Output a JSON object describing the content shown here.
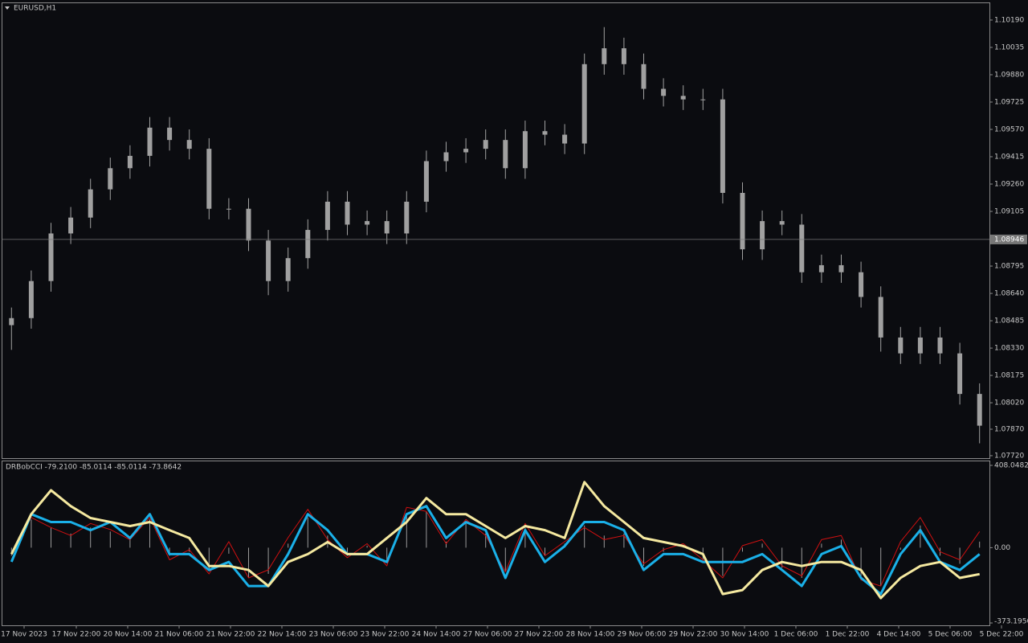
{
  "chart_data": [
    {
      "type": "candlestick",
      "title": "EURUSD,H1",
      "color": "#a0a0a0",
      "open": [
        1.0846,
        1.085,
        1.0871,
        1.0898,
        1.0907,
        1.0923,
        1.0935,
        1.0942,
        1.0958,
        1.0951,
        1.0946,
        1.0912,
        1.0912,
        1.0894,
        1.0871,
        1.0884,
        1.09,
        1.0916,
        1.0903,
        1.0905,
        1.0898,
        1.0916,
        1.0939,
        1.0944,
        1.0946,
        1.0951,
        1.0935,
        1.0956,
        1.0954,
        1.0949,
        1.0994,
        1.1003,
        1.0994,
        1.098,
        1.0976,
        1.0974,
        1.0974,
        1.0921,
        1.0889,
        1.0905,
        1.0903,
        1.0876,
        1.088,
        1.0876,
        1.0862,
        1.0839,
        1.083,
        1.0839,
        1.083,
        1.0807
      ],
      "high": [
        1.0856,
        1.0877,
        1.0904,
        1.0913,
        1.0929,
        1.0941,
        1.0948,
        1.0964,
        1.0964,
        1.0957,
        1.0952,
        1.0918,
        1.0918,
        1.09,
        1.089,
        1.0906,
        1.0922,
        1.0922,
        1.0911,
        1.0911,
        1.0922,
        1.0945,
        1.095,
        1.0952,
        1.0957,
        1.0957,
        1.0962,
        1.0962,
        1.096,
        1.1,
        1.1015,
        1.1009,
        1.1,
        1.0986,
        1.0982,
        1.098,
        1.098,
        1.0927,
        1.0911,
        1.0911,
        1.0909,
        1.0886,
        1.0886,
        1.0882,
        1.0868,
        1.0845,
        1.0845,
        1.0845,
        1.0836,
        1.0813
      ],
      "low": [
        1.0832,
        1.0844,
        1.0865,
        1.0892,
        1.0901,
        1.0917,
        1.0929,
        1.0936,
        1.0945,
        1.094,
        1.0906,
        1.0906,
        1.0888,
        1.0863,
        1.0865,
        1.0878,
        1.0894,
        1.0897,
        1.0897,
        1.0892,
        1.0892,
        1.091,
        1.0933,
        1.0938,
        1.094,
        1.0929,
        1.0929,
        1.0948,
        1.0943,
        1.0943,
        1.0988,
        1.0988,
        1.0974,
        1.097,
        1.0968,
        1.0968,
        1.0915,
        1.0883,
        1.0883,
        1.0897,
        1.087,
        1.087,
        1.087,
        1.0856,
        1.0831,
        1.0824,
        1.0824,
        1.0824,
        1.0801,
        1.0779
      ],
      "close": [
        1.085,
        1.0871,
        1.0898,
        1.0907,
        1.0923,
        1.0935,
        1.0942,
        1.0958,
        1.0951,
        1.0946,
        1.0912,
        1.0912,
        1.0894,
        1.0871,
        1.0884,
        1.09,
        1.0916,
        1.0903,
        1.0905,
        1.0898,
        1.0916,
        1.0939,
        1.0944,
        1.0946,
        1.0951,
        1.0935,
        1.0956,
        1.0954,
        1.0949,
        1.0994,
        1.1003,
        1.0994,
        1.098,
        1.0976,
        1.0974,
        1.0974,
        1.0921,
        1.0889,
        1.0905,
        1.0903,
        1.0876,
        1.088,
        1.0876,
        1.0862,
        1.0839,
        1.083,
        1.0839,
        1.083,
        1.0807,
        1.0789
      ],
      "current": 1.08946,
      "ylim": [
        1.07706,
        1.1029
      ],
      "yticks": [
        {
          "value": 1.1019,
          "label": "1.10190"
        },
        {
          "value": 1.10035,
          "label": "1.10035"
        },
        {
          "value": 1.0988,
          "label": "1.09880"
        },
        {
          "value": 1.09725,
          "label": "1.09725"
        },
        {
          "value": 1.0957,
          "label": "1.09570"
        },
        {
          "value": 1.09415,
          "label": "1.09415"
        },
        {
          "value": 1.0926,
          "label": "1.09260"
        },
        {
          "value": 1.09105,
          "label": "1.09105"
        },
        {
          "value": 1.08795,
          "label": "1.08795"
        },
        {
          "value": 1.0864,
          "label": "1.08640"
        },
        {
          "value": 1.08485,
          "label": "1.08485"
        },
        {
          "value": 1.0833,
          "label": "1.08330"
        },
        {
          "value": 1.08175,
          "label": "1.08175"
        },
        {
          "value": 1.0802,
          "label": "1.08020"
        },
        {
          "value": 1.0787,
          "label": "1.07870"
        },
        {
          "value": 1.0772,
          "label": "1.07720"
        }
      ]
    },
    {
      "type": "indicator",
      "title": "DRBobCCI -79.2100 -85.0114 -85.0114 -73.8642",
      "ylim": [
        -385,
        432
      ],
      "yticks": [
        408.0482,
        {
          "value": 0,
          "label": "0.00"
        },
        -373.1956
      ],
      "xtick_labels": [
        "17 Nov 2023",
        "17 Nov 22:00",
        "20 Nov 14:00",
        "21 Nov 06:00",
        "21 Nov 22:00",
        "22 Nov 14:00",
        "23 Nov 06:00",
        "23 Nov 22:00",
        "24 Nov 14:00",
        "27 Nov 06:00",
        "27 Nov 22:00",
        "28 Nov 14:00",
        "29 Nov 06:00",
        "29 Nov 22:00",
        "30 Nov 14:00",
        "1 Dec 06:00",
        "1 Dec 22:00",
        "4 Dec 14:00",
        "5 Dec 06:00",
        "5 Dec 22:00"
      ],
      "series": [
        {
          "style": "histogram",
          "color": "#9a9a9a",
          "values": [
            -40,
            140,
            100,
            70,
            100,
            80,
            40,
            140,
            -40,
            -20,
            -110,
            -30,
            -150,
            -130,
            20,
            150,
            60,
            -40,
            10,
            -70,
            160,
            180,
            30,
            120,
            70,
            -120,
            100,
            -40,
            20,
            110,
            60,
            70,
            -90,
            -20,
            10,
            -60,
            -140,
            -20,
            20,
            -100,
            -150,
            20,
            40,
            -140,
            -190,
            -10,
            110,
            -40,
            -80,
            30
          ]
        },
        {
          "style": "line",
          "color": "#d01010",
          "width": 1,
          "values": [
            -30,
            150,
            100,
            60,
            120,
            90,
            40,
            150,
            -60,
            -10,
            -130,
            30,
            -150,
            -110,
            50,
            190,
            40,
            -50,
            20,
            -90,
            200,
            180,
            20,
            140,
            60,
            -120,
            120,
            -40,
            30,
            100,
            40,
            60,
            -80,
            -10,
            20,
            -60,
            -150,
            10,
            40,
            -90,
            -140,
            40,
            60,
            -160,
            -190,
            30,
            150,
            -20,
            -60,
            80
          ]
        },
        {
          "style": "line",
          "color": "#1ab0e8",
          "width": 3,
          "values": [
            -70,
            166,
            127,
            127,
            87,
            127,
            48,
            166,
            -32,
            -32,
            -111,
            -71,
            -190,
            -190,
            -32,
            166,
            87,
            -32,
            -32,
            -71,
            166,
            206,
            48,
            127,
            87,
            -150,
            87,
            -71,
            8,
            127,
            127,
            87,
            -111,
            -32,
            -32,
            -71,
            -71,
            -71,
            -32,
            -111,
            -190,
            -32,
            8,
            -150,
            -230,
            -32,
            87,
            -71,
            -111,
            -32
          ]
        },
        {
          "style": "line",
          "color": "#f5e9a0",
          "width": 3,
          "values": [
            -32,
            166,
            285,
            206,
            147,
            127,
            107,
            127,
            87,
            48,
            -91,
            -91,
            -111,
            -190,
            -71,
            -32,
            28,
            -32,
            -32,
            48,
            127,
            246,
            166,
            166,
            107,
            48,
            107,
            87,
            48,
            325,
            206,
            127,
            48,
            28,
            8,
            -32,
            -230,
            -210,
            -111,
            -71,
            -91,
            -71,
            -71,
            -111,
            -250,
            -150,
            -91,
            -71,
            -150,
            -131
          ]
        }
      ]
    }
  ]
}
